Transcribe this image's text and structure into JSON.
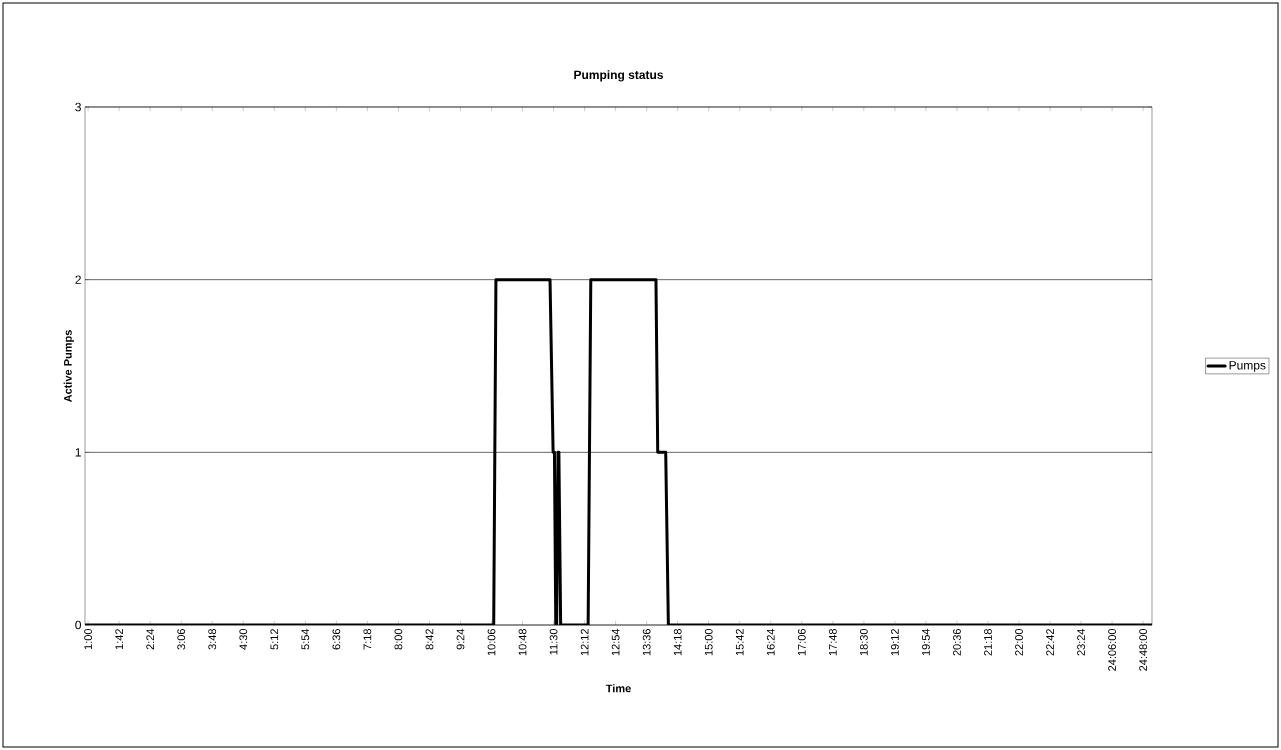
{
  "chart_data": {
    "type": "line",
    "title": "Pumping status",
    "xlabel": "Time",
    "ylabel": "Active Pumps",
    "series": [
      {
        "name": "Pumps",
        "color": "#000000",
        "x": [
          0.93,
          10.15,
          10.2,
          11.42,
          11.49,
          11.52,
          11.55,
          11.57,
          11.6,
          11.62,
          11.66,
          12.28,
          12.34,
          13.81,
          13.85,
          14.03,
          14.09,
          25.0
        ],
        "values": [
          0,
          0,
          2,
          2,
          1,
          1,
          0,
          0,
          1,
          1,
          0,
          0,
          2,
          2,
          1,
          1,
          0,
          0
        ]
      }
    ],
    "xlim": [
      0.93,
      25.0
    ],
    "xticks": [
      {
        "value": 1.0,
        "label": "1:00"
      },
      {
        "value": 1.7,
        "label": "1:42"
      },
      {
        "value": 2.4,
        "label": "2:24"
      },
      {
        "value": 3.1,
        "label": "3:06"
      },
      {
        "value": 3.8,
        "label": "3:48"
      },
      {
        "value": 4.5,
        "label": "4:30"
      },
      {
        "value": 5.2,
        "label": "5:12"
      },
      {
        "value": 5.9,
        "label": "5:54"
      },
      {
        "value": 6.6,
        "label": "6:36"
      },
      {
        "value": 7.3,
        "label": "7:18"
      },
      {
        "value": 8.0,
        "label": "8:00"
      },
      {
        "value": 8.7,
        "label": "8:42"
      },
      {
        "value": 9.4,
        "label": "9:24"
      },
      {
        "value": 10.1,
        "label": "10:06"
      },
      {
        "value": 10.8,
        "label": "10:48"
      },
      {
        "value": 11.5,
        "label": "11:30"
      },
      {
        "value": 12.2,
        "label": "12:12"
      },
      {
        "value": 12.9,
        "label": "12:54"
      },
      {
        "value": 13.6,
        "label": "13:36"
      },
      {
        "value": 14.3,
        "label": "14:18"
      },
      {
        "value": 15.0,
        "label": "15:00"
      },
      {
        "value": 15.7,
        "label": "15:42"
      },
      {
        "value": 16.4,
        "label": "16:24"
      },
      {
        "value": 17.1,
        "label": "17:06"
      },
      {
        "value": 17.8,
        "label": "17:48"
      },
      {
        "value": 18.5,
        "label": "18:30"
      },
      {
        "value": 19.2,
        "label": "19:12"
      },
      {
        "value": 19.9,
        "label": "19:54"
      },
      {
        "value": 20.6,
        "label": "20:36"
      },
      {
        "value": 21.3,
        "label": "21:18"
      },
      {
        "value": 22.0,
        "label": "22:00"
      },
      {
        "value": 22.7,
        "label": "22:42"
      },
      {
        "value": 23.4,
        "label": "23:24"
      },
      {
        "value": 24.1,
        "label": "24:06:00"
      },
      {
        "value": 24.8,
        "label": "24:48:00"
      }
    ],
    "ylim": [
      0,
      3
    ],
    "yticks": [
      0,
      1,
      2,
      3
    ],
    "grid": "y",
    "legend": "right",
    "marker": "none",
    "line_style": "solid"
  }
}
